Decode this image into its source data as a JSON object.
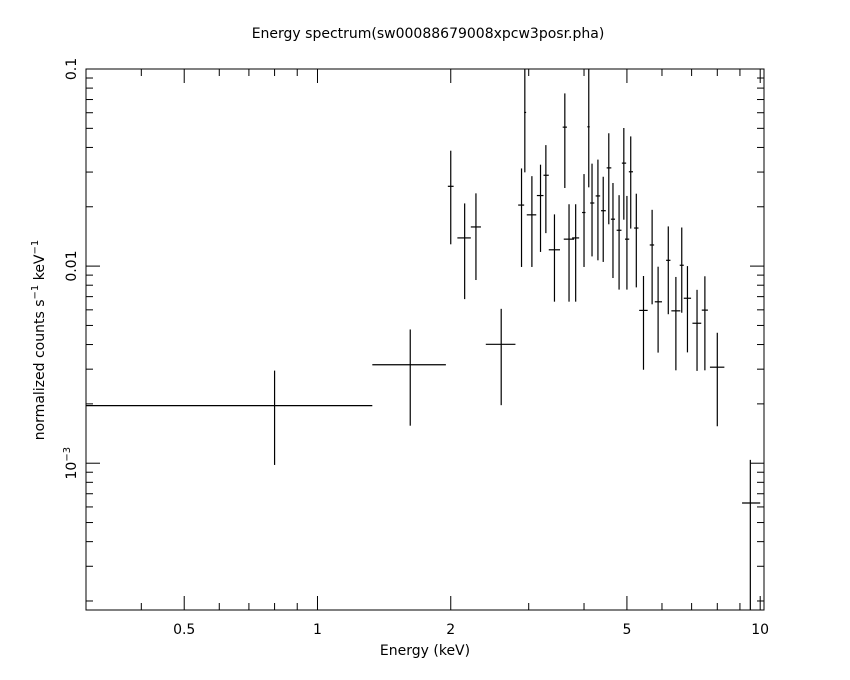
{
  "chart_data": {
    "type": "scatter",
    "title": "Energy spectrum(sw00088679008xpcw3posr.pha)",
    "xlabel": "Energy (keV)",
    "ylabel_parts": [
      "normalized counts s",
      "−1",
      " keV",
      "−1"
    ],
    "xscale": "log",
    "yscale": "log",
    "xlim": [
      0.3,
      10.2
    ],
    "ylim": [
      0.00018,
      0.1
    ],
    "x_ticks": [
      {
        "value": 0.5,
        "label": "0.5"
      },
      {
        "value": 1,
        "label": "1"
      },
      {
        "value": 2,
        "label": "2"
      },
      {
        "value": 5,
        "label": "5"
      },
      {
        "value": 10,
        "label": "10"
      }
    ],
    "y_ticks": [
      {
        "value": 0.1,
        "label": "0.1",
        "exp": ""
      },
      {
        "value": 0.01,
        "label": "0.01",
        "exp": ""
      },
      {
        "value": 0.001,
        "label": "10",
        "exp": "−3"
      }
    ],
    "grid": false,
    "series": [
      {
        "points": [
          {
            "x": 0.8,
            "xlo": 0.3,
            "xhi": 1.33,
            "y": 0.00196,
            "ylo": 0.00098,
            "yhi": 0.00295
          },
          {
            "x": 1.62,
            "xlo": 1.33,
            "xhi": 1.95,
            "y": 0.00316,
            "ylo": 0.00155,
            "yhi": 0.00477
          },
          {
            "x": 2.0,
            "xlo": 1.97,
            "xhi": 2.03,
            "y": 0.0254,
            "ylo": 0.0129,
            "yhi": 0.0385
          },
          {
            "x": 2.15,
            "xlo": 2.07,
            "xhi": 2.22,
            "y": 0.0139,
            "ylo": 0.0068,
            "yhi": 0.0208
          },
          {
            "x": 2.28,
            "xlo": 2.22,
            "xhi": 2.34,
            "y": 0.0158,
            "ylo": 0.0085,
            "yhi": 0.0234
          },
          {
            "x": 2.6,
            "xlo": 2.4,
            "xhi": 2.8,
            "y": 0.00401,
            "ylo": 0.00197,
            "yhi": 0.00607
          },
          {
            "x": 2.89,
            "xlo": 2.84,
            "xhi": 2.93,
            "y": 0.0204,
            "ylo": 0.0099,
            "yhi": 0.0313
          },
          {
            "x": 2.94,
            "xlo": 2.93,
            "xhi": 2.96,
            "y": 0.0602,
            "ylo": 0.0299,
            "yhi": 0.1
          },
          {
            "x": 3.05,
            "xlo": 2.97,
            "xhi": 3.12,
            "y": 0.0182,
            "ylo": 0.0099,
            "yhi": 0.0286
          },
          {
            "x": 3.19,
            "xlo": 3.13,
            "xhi": 3.24,
            "y": 0.0228,
            "ylo": 0.0118,
            "yhi": 0.0327
          },
          {
            "x": 3.28,
            "xlo": 3.24,
            "xhi": 3.33,
            "y": 0.0289,
            "ylo": 0.0147,
            "yhi": 0.0411
          },
          {
            "x": 3.43,
            "xlo": 3.33,
            "xhi": 3.53,
            "y": 0.0121,
            "ylo": 0.0066,
            "yhi": 0.0183
          },
          {
            "x": 3.62,
            "xlo": 3.58,
            "xhi": 3.66,
            "y": 0.0507,
            "ylo": 0.0249,
            "yhi": 0.0752
          },
          {
            "x": 3.7,
            "xlo": 3.6,
            "xhi": 3.8,
            "y": 0.0137,
            "ylo": 0.0066,
            "yhi": 0.0206
          },
          {
            "x": 3.83,
            "xlo": 3.76,
            "xhi": 3.9,
            "y": 0.0139,
            "ylo": 0.0066,
            "yhi": 0.0206
          },
          {
            "x": 4.0,
            "xlo": 3.96,
            "xhi": 4.03,
            "y": 0.0187,
            "ylo": 0.0099,
            "yhi": 0.0293
          },
          {
            "x": 4.1,
            "xlo": 4.07,
            "xhi": 4.12,
            "y": 0.0509,
            "ylo": 0.0251,
            "yhi": 0.1
          },
          {
            "x": 4.17,
            "xlo": 4.13,
            "xhi": 4.22,
            "y": 0.0209,
            "ylo": 0.0112,
            "yhi": 0.0331
          },
          {
            "x": 4.3,
            "xlo": 4.25,
            "xhi": 4.35,
            "y": 0.0227,
            "ylo": 0.0107,
            "yhi": 0.0347
          },
          {
            "x": 4.42,
            "xlo": 4.37,
            "xhi": 4.48,
            "y": 0.0191,
            "ylo": 0.0105,
            "yhi": 0.0284
          },
          {
            "x": 4.55,
            "xlo": 4.5,
            "xhi": 4.61,
            "y": 0.0315,
            "ylo": 0.0163,
            "yhi": 0.0472
          },
          {
            "x": 4.65,
            "xlo": 4.6,
            "xhi": 4.7,
            "y": 0.0173,
            "ylo": 0.0087,
            "yhi": 0.0264
          },
          {
            "x": 4.8,
            "xlo": 4.74,
            "xhi": 4.86,
            "y": 0.0152,
            "ylo": 0.0076,
            "yhi": 0.0229
          },
          {
            "x": 4.92,
            "xlo": 4.87,
            "xhi": 4.98,
            "y": 0.0333,
            "ylo": 0.0172,
            "yhi": 0.0502
          },
          {
            "x": 5.0,
            "xlo": 4.95,
            "xhi": 5.06,
            "y": 0.0137,
            "ylo": 0.0076,
            "yhi": 0.0227
          },
          {
            "x": 5.1,
            "xlo": 5.05,
            "xhi": 5.16,
            "y": 0.0301,
            "ylo": 0.0155,
            "yhi": 0.0455
          },
          {
            "x": 5.25,
            "xlo": 5.19,
            "xhi": 5.31,
            "y": 0.0156,
            "ylo": 0.0078,
            "yhi": 0.0233
          },
          {
            "x": 5.45,
            "xlo": 5.33,
            "xhi": 5.57,
            "y": 0.00596,
            "ylo": 0.00298,
            "yhi": 0.00891
          },
          {
            "x": 5.7,
            "xlo": 5.63,
            "xhi": 5.76,
            "y": 0.0128,
            "ylo": 0.0064,
            "yhi": 0.0193
          },
          {
            "x": 5.88,
            "xlo": 5.78,
            "xhi": 6.0,
            "y": 0.00659,
            "ylo": 0.00364,
            "yhi": 0.00993
          },
          {
            "x": 6.2,
            "xlo": 6.13,
            "xhi": 6.27,
            "y": 0.0107,
            "ylo": 0.0057,
            "yhi": 0.0159
          },
          {
            "x": 6.45,
            "xlo": 6.3,
            "xhi": 6.6,
            "y": 0.00593,
            "ylo": 0.00296,
            "yhi": 0.00881
          },
          {
            "x": 6.65,
            "xlo": 6.58,
            "xhi": 6.72,
            "y": 0.0101,
            "ylo": 0.0058,
            "yhi": 0.0157
          },
          {
            "x": 6.85,
            "xlo": 6.72,
            "xhi": 6.98,
            "y": 0.00687,
            "ylo": 0.00365,
            "yhi": 0.01
          },
          {
            "x": 7.2,
            "xlo": 7.03,
            "xhi": 7.36,
            "y": 0.00513,
            "ylo": 0.00294,
            "yhi": 0.00758
          },
          {
            "x": 7.5,
            "xlo": 7.38,
            "xhi": 7.62,
            "y": 0.00598,
            "ylo": 0.00296,
            "yhi": 0.00888
          },
          {
            "x": 8.0,
            "xlo": 7.7,
            "xhi": 8.3,
            "y": 0.00307,
            "ylo": 0.00154,
            "yhi": 0.00459
          },
          {
            "x": 9.5,
            "xlo": 9.1,
            "xhi": 10.0,
            "y": 0.000628,
            "ylo": 0.00018,
            "yhi": 0.00104
          }
        ]
      }
    ]
  }
}
